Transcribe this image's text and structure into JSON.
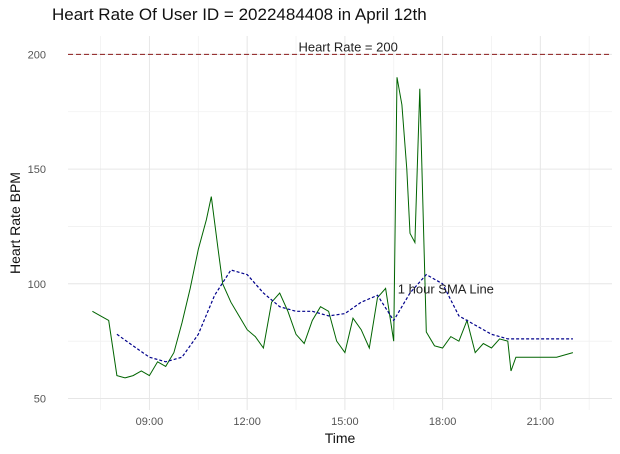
{
  "chart_data": {
    "type": "line",
    "title": "Heart Rate Of User ID = 2022484408 in April 12th",
    "xlabel": "Time",
    "ylabel": "Heart Rate BPM",
    "x_ticks": [
      "09:00",
      "12:00",
      "15:00",
      "18:00",
      "21:00"
    ],
    "x_tick_hours": [
      9,
      12,
      15,
      18,
      21
    ],
    "y_ticks": [
      50,
      100,
      150,
      200
    ],
    "xlim_hours": [
      6.5,
      23.2
    ],
    "ylim": [
      45,
      208
    ],
    "grid": true,
    "reference_line": {
      "value": 200,
      "label": "Heart Rate = 200",
      "color": "#8b1a1a"
    },
    "sma_label": "1 hour SMA Line",
    "colors": {
      "heart_rate": "#006400",
      "sma": "#00008b"
    },
    "series": [
      {
        "key": "heart_rate",
        "x_hours": [
          7.25,
          7.5,
          7.75,
          8.0,
          8.25,
          8.5,
          8.75,
          9.0,
          9.25,
          9.5,
          9.75,
          10.0,
          10.25,
          10.5,
          10.75,
          10.9,
          11.1,
          11.25,
          11.5,
          11.75,
          12.0,
          12.25,
          12.5,
          12.75,
          13.0,
          13.25,
          13.5,
          13.75,
          14.0,
          14.25,
          14.5,
          14.75,
          15.0,
          15.25,
          15.5,
          15.75,
          16.0,
          16.25,
          16.5,
          16.6,
          16.75,
          16.9,
          17.0,
          17.15,
          17.3,
          17.5,
          17.75,
          18.0,
          18.25,
          18.5,
          18.75,
          19.0,
          19.25,
          19.5,
          19.75,
          20.0,
          20.1,
          20.25,
          20.5,
          21.0,
          21.5,
          22.0
        ],
        "y": [
          88,
          86,
          84,
          60,
          59,
          60,
          62,
          60,
          66,
          64,
          70,
          83,
          98,
          115,
          128,
          138,
          116,
          100,
          92,
          86,
          80,
          77,
          72,
          92,
          96,
          88,
          78,
          74,
          84,
          90,
          88,
          75,
          70,
          85,
          80,
          72,
          94,
          98,
          75,
          190,
          178,
          150,
          122,
          118,
          185,
          79,
          73,
          72,
          77,
          75,
          84,
          70,
          74,
          72,
          76,
          75,
          62,
          68,
          68,
          68,
          68,
          70
        ]
      },
      {
        "key": "sma",
        "x_hours": [
          8.0,
          8.5,
          9.0,
          9.5,
          10.0,
          10.5,
          11.0,
          11.5,
          12.0,
          12.5,
          13.0,
          13.5,
          14.0,
          14.5,
          15.0,
          15.5,
          16.0,
          16.5,
          17.0,
          17.5,
          18.0,
          18.5,
          19.0,
          19.5,
          20.0,
          20.5,
          21.0,
          21.5,
          22.0
        ],
        "y": [
          78,
          73,
          68,
          66,
          68,
          78,
          95,
          106,
          104,
          96,
          90,
          88,
          88,
          86,
          87,
          92,
          95,
          84,
          96,
          104,
          100,
          86,
          82,
          78,
          76,
          76,
          76,
          76,
          76
        ]
      }
    ]
  }
}
